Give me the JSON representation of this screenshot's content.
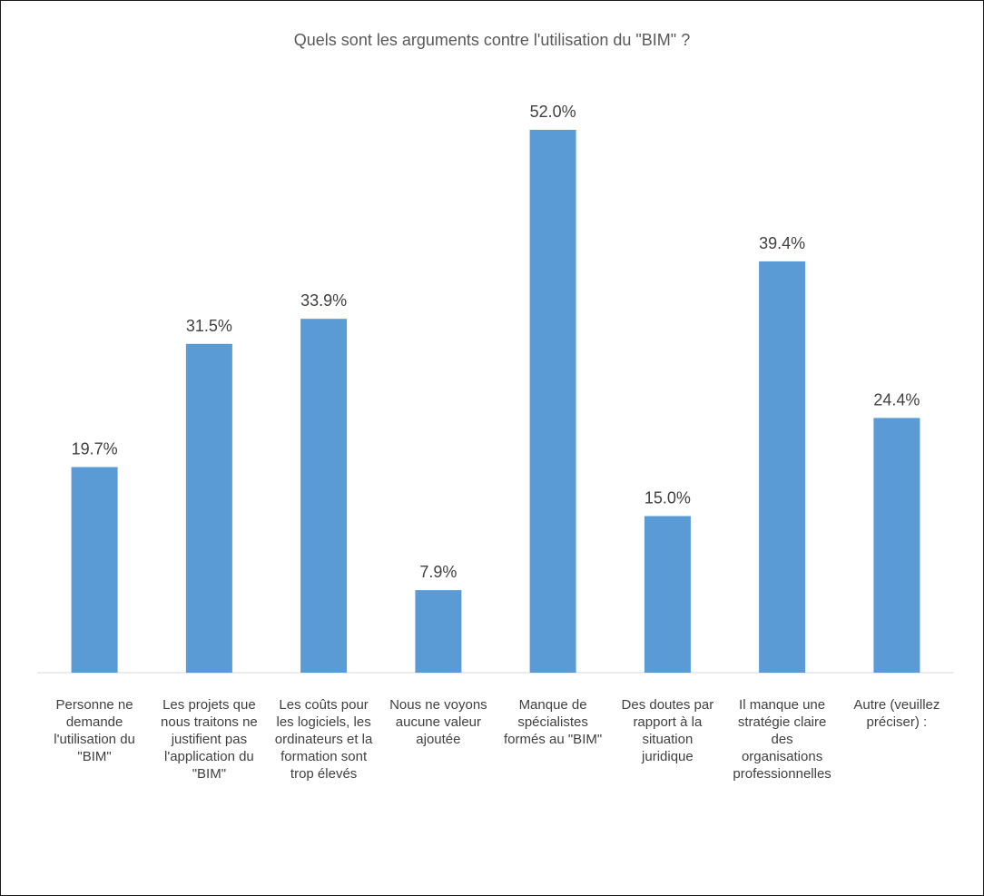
{
  "chart_data": {
    "type": "bar",
    "title": "Quels sont les arguments contre l'utilisation du \"BIM\" ?",
    "xlabel": "",
    "ylabel": "",
    "ylim": [
      0,
      60
    ],
    "grid": false,
    "legend": "none",
    "bar_color": "#5b9bd5",
    "categories": [
      "Personne ne demande l'utilisation du \"BIM\"",
      "Les projets que nous traitons ne justifient pas l'application du \"BIM\"",
      "Les coûts pour les logiciels, les ordinateurs et la formation sont trop élevés",
      "Nous ne voyons aucune valeur ajoutée",
      "Manque de spécialistes formés au \"BIM\"",
      "Des doutes par rapport à la situation juridique",
      "Il manque une stratégie claire des organisations professionnelles",
      "Autre (veuillez préciser) :"
    ],
    "values": [
      19.7,
      31.5,
      33.9,
      7.9,
      52.0,
      15.0,
      39.4,
      24.4
    ],
    "data_labels": [
      "19.7%",
      "31.5%",
      "33.9%",
      "7.9%",
      "52.0%",
      "15.0%",
      "39.4%",
      "24.4%"
    ],
    "category_lines": [
      [
        "Personne ne",
        "demande",
        "l'utilisation du",
        "\"BIM\""
      ],
      [
        "Les projets que",
        "nous traitons ne",
        "justifient pas",
        "l'application du",
        "\"BIM\""
      ],
      [
        "Les coûts pour",
        "les logiciels, les",
        "ordinateurs et la",
        "formation sont",
        "trop élevés"
      ],
      [
        "Nous ne voyons",
        "aucune valeur",
        "ajoutée"
      ],
      [
        "Manque de",
        "spécialistes",
        "formés au \"BIM\""
      ],
      [
        "Des doutes par",
        "rapport à la",
        "situation",
        "juridique"
      ],
      [
        "Il manque une",
        "stratégie claire",
        "des",
        "organisations",
        "professionnelles"
      ],
      [
        "Autre (veuillez",
        "préciser) :"
      ]
    ]
  }
}
